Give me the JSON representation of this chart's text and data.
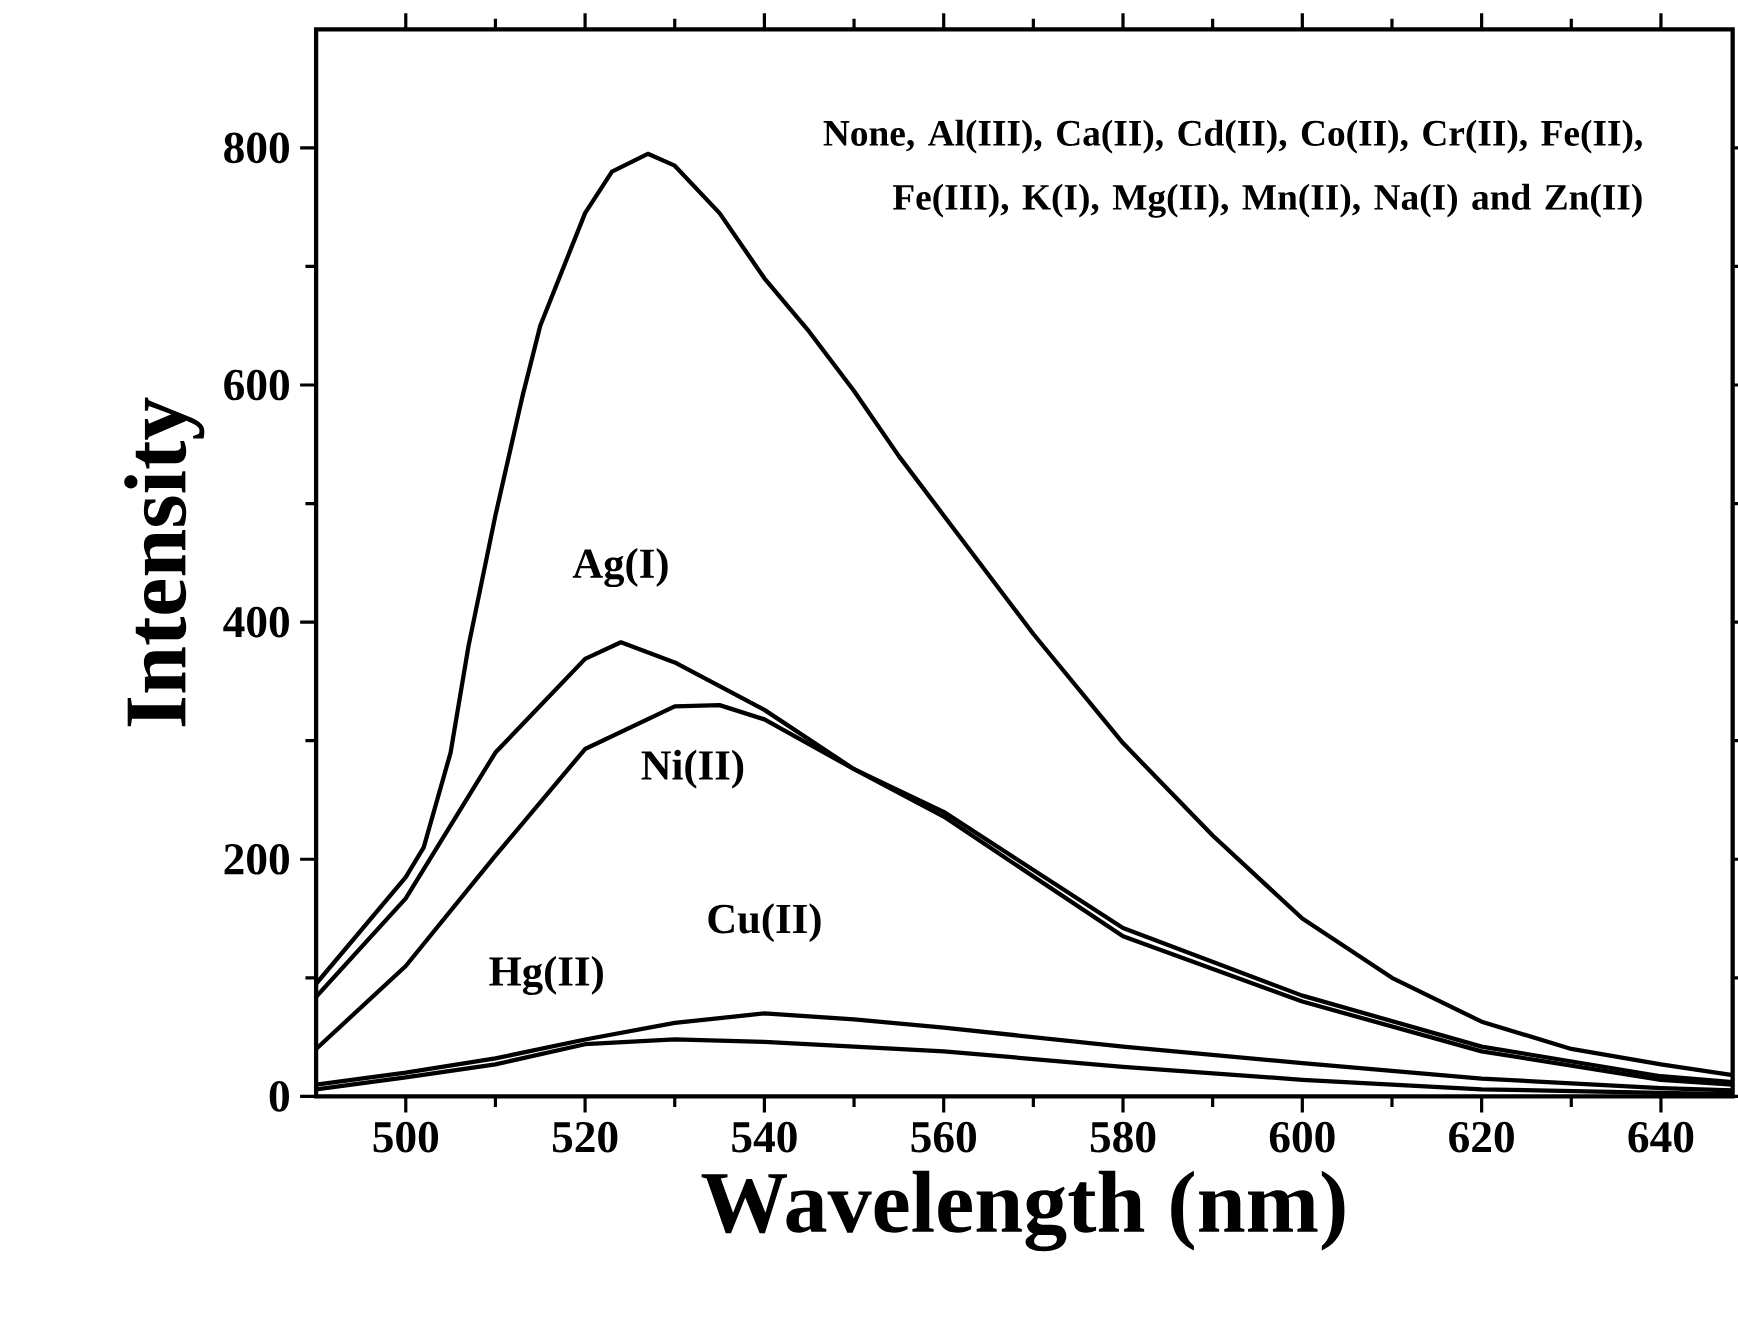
{
  "chart_data": {
    "type": "line",
    "xlabel": "Wavelength (nm)",
    "ylabel": "Intensity",
    "xlim": [
      490,
      648
    ],
    "ylim": [
      0,
      900
    ],
    "xticks": [
      500,
      520,
      540,
      560,
      580,
      600,
      620,
      640
    ],
    "yticks": [
      0,
      200,
      400,
      600,
      800
    ],
    "grid": false,
    "legend": false,
    "marker": "none",
    "line_style": "solid",
    "series": [
      {
        "name": "None, Al(III), Ca(II), Cd(II), Co(II), Cr(II), Fe(II), Fe(III), K(I), Mg(II), Mn(II), Na(I) and Zn(II)",
        "color": "#000000",
        "x": [
          490,
          495,
          500,
          502,
          505,
          507,
          510,
          513,
          515,
          520,
          523,
          527,
          530,
          535,
          540,
          545,
          550,
          555,
          560,
          570,
          580,
          590,
          600,
          610,
          620,
          630,
          640,
          648
        ],
        "values": [
          95,
          140,
          185,
          210,
          290,
          380,
          490,
          590,
          650,
          745,
          780,
          795,
          785,
          745,
          690,
          645,
          595,
          540,
          490,
          390,
          298,
          220,
          150,
          100,
          63,
          40,
          27,
          18
        ]
      },
      {
        "name": "Ag(I)",
        "color": "#000000",
        "x": [
          490,
          500,
          510,
          520,
          524,
          530,
          540,
          550,
          560,
          580,
          600,
          620,
          640,
          648
        ],
        "values": [
          84,
          167,
          290,
          369,
          383,
          366,
          326,
          276,
          240,
          142,
          85,
          42,
          17,
          12
        ]
      },
      {
        "name": "Ni(II)",
        "color": "#000000",
        "x": [
          490,
          500,
          510,
          520,
          530,
          535,
          540,
          550,
          560,
          580,
          600,
          620,
          640,
          648
        ],
        "values": [
          40,
          110,
          203,
          293,
          329,
          330,
          318,
          276,
          236,
          135,
          80,
          38,
          14,
          10
        ]
      },
      {
        "name": "Cu(II)",
        "color": "#000000",
        "x": [
          490,
          500,
          510,
          520,
          530,
          540,
          550,
          560,
          580,
          600,
          620,
          640,
          648
        ],
        "values": [
          10,
          20,
          32,
          48,
          62,
          70,
          65,
          58,
          42,
          28,
          15,
          7,
          5
        ]
      },
      {
        "name": "Hg(II)",
        "color": "#000000",
        "x": [
          490,
          500,
          510,
          520,
          530,
          540,
          550,
          560,
          580,
          600,
          620,
          640,
          648
        ],
        "values": [
          6,
          16,
          27,
          44,
          48,
          46,
          42,
          38,
          25,
          14,
          6,
          3,
          2
        ]
      }
    ]
  }
}
